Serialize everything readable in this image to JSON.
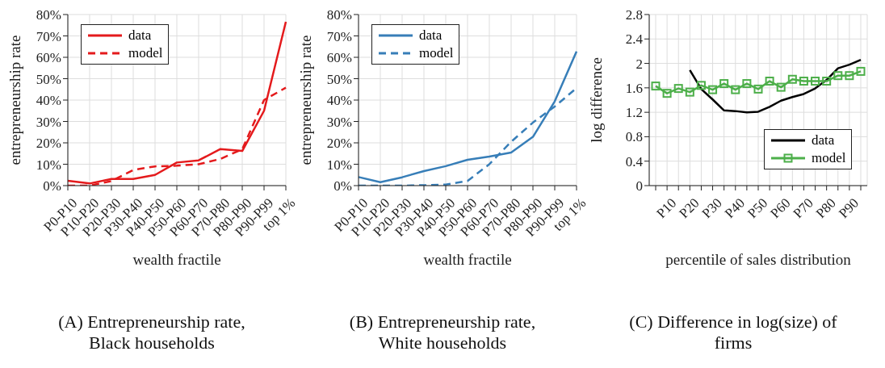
{
  "chart_data": [
    {
      "type": "line",
      "title": "(A) Entrepreneurship rate, Black households",
      "xlabel": "wealth fractile",
      "ylabel": "entrepreneurship rate",
      "categories": [
        "P0-P10",
        "P10-P20",
        "P20-P30",
        "P30-P40",
        "P40-P50",
        "P50-P60",
        "P60-P70",
        "P70-P80",
        "P80-P90",
        "P90-P99",
        "top 1%"
      ],
      "series": [
        {
          "name": "data",
          "color": "#e41a1c",
          "line_style": "solid",
          "values": [
            2.3,
            1.0,
            3.1,
            3.1,
            5.0,
            10.8,
            11.8,
            17.1,
            16.2,
            35.0,
            76.6
          ]
        },
        {
          "name": "model",
          "color": "#e41a1c",
          "line_style": "dashed",
          "values": [
            0,
            0,
            2.1,
            7.3,
            9.0,
            9.3,
            10.0,
            12.5,
            17.0,
            40.0,
            45.8
          ]
        }
      ],
      "ylim": [
        0,
        80
      ],
      "yticks": [
        {
          "value": 0,
          "label": "0%"
        },
        {
          "value": 10,
          "label": "10%"
        },
        {
          "value": 20,
          "label": "20%"
        },
        {
          "value": 30,
          "label": "30%"
        },
        {
          "value": 40,
          "label": "40%"
        },
        {
          "value": 50,
          "label": "50%"
        },
        {
          "value": 60,
          "label": "60%"
        },
        {
          "value": 70,
          "label": "70%"
        },
        {
          "value": 80,
          "label": "80%"
        }
      ],
      "grid": true,
      "legend": "top left"
    },
    {
      "type": "line",
      "title": "(B) Entrepreneurship rate, White households",
      "xlabel": "wealth fractile",
      "ylabel": "entrepreneurship rate",
      "categories": [
        "P0-P10",
        "P10-P20",
        "P20-P30",
        "P30-P40",
        "P40-P50",
        "P50-P60",
        "P60-P70",
        "P70-P80",
        "P80-P90",
        "P90-P99",
        "top 1%"
      ],
      "series": [
        {
          "name": "data",
          "color": "#377eb8",
          "line_style": "solid",
          "values": [
            4.0,
            1.6,
            3.9,
            6.8,
            9.1,
            12.1,
            13.6,
            15.5,
            22.8,
            39.4,
            62.7
          ]
        },
        {
          "name": "model",
          "color": "#377eb8",
          "line_style": "dashed",
          "values": [
            0,
            0,
            0,
            0.2,
            0.5,
            2.2,
            10.0,
            20.5,
            29.5,
            37.0,
            45.6
          ]
        }
      ],
      "ylim": [
        0,
        80
      ],
      "yticks": [
        {
          "value": 0,
          "label": "0%"
        },
        {
          "value": 10,
          "label": "10%"
        },
        {
          "value": 20,
          "label": "20%"
        },
        {
          "value": 30,
          "label": "30%"
        },
        {
          "value": 40,
          "label": "40%"
        },
        {
          "value": 50,
          "label": "50%"
        },
        {
          "value": 60,
          "label": "60%"
        },
        {
          "value": 70,
          "label": "70%"
        },
        {
          "value": 80,
          "label": "80%"
        }
      ],
      "grid": true,
      "legend": "top left"
    },
    {
      "type": "line",
      "title": "(C) Difference in log(size) of firms",
      "xlabel": "percentile of sales distribution",
      "ylabel": "log difference",
      "categories": [
        null,
        "P10",
        null,
        "P20",
        null,
        "P30",
        null,
        "P40",
        null,
        "P50",
        null,
        "P60",
        null,
        "P70",
        null,
        "P80",
        null,
        "P90",
        null
      ],
      "series": [
        {
          "name": "data",
          "color": "#000000",
          "line_style": "solid",
          "marker": "none",
          "values": [
            null,
            null,
            null,
            1.89,
            1.58,
            1.41,
            1.23,
            1.22,
            1.2,
            1.21,
            1.29,
            1.39,
            1.45,
            1.5,
            1.59,
            1.73,
            1.92,
            1.98,
            2.06
          ]
        },
        {
          "name": "model",
          "color": "#4daf4a",
          "line_style": "solid",
          "marker": "square",
          "values": [
            1.63,
            1.51,
            1.59,
            1.53,
            1.64,
            1.57,
            1.67,
            1.57,
            1.67,
            1.58,
            1.71,
            1.61,
            1.74,
            1.71,
            1.71,
            1.71,
            1.8,
            1.8,
            1.87
          ]
        }
      ],
      "ylim": [
        0,
        2.8
      ],
      "yticks": [
        0,
        {
          "value": 0.4,
          "label": "0.4"
        },
        {
          "value": 0.8,
          "label": "0.8"
        },
        {
          "value": 1.2,
          "label": "1.2"
        },
        {
          "value": 1.6,
          "label": "1.6"
        },
        2,
        {
          "value": 2.4,
          "label": "2.4"
        },
        {
          "value": 2.8,
          "label": "2.8"
        }
      ],
      "grid": true,
      "legend": "bottom right"
    }
  ]
}
